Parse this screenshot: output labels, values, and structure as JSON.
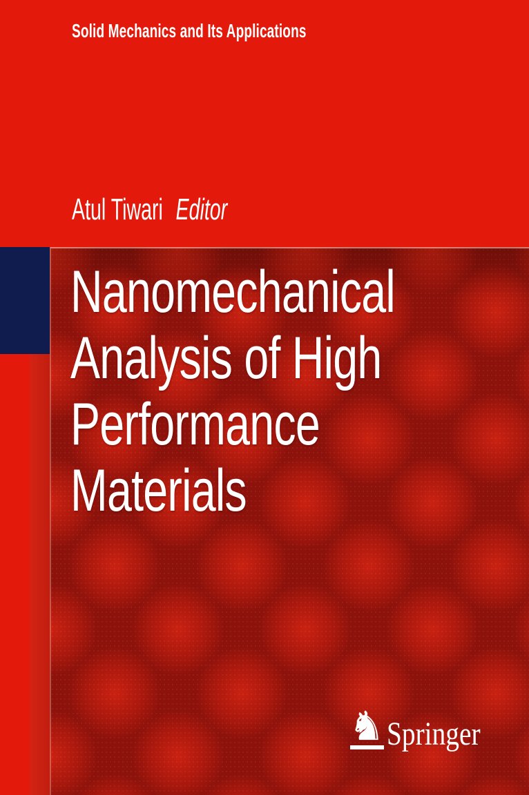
{
  "cover": {
    "series": "Solid Mechanics and Its Applications",
    "editor_name": "Atul Tiwari",
    "editor_role": "Editor",
    "title_lines": [
      "Nanomechanical",
      "Analysis of High",
      "Performance",
      "Materials"
    ],
    "publisher": "Springer",
    "publisher_icon": "springer-horse-icon",
    "horse_glyph": "♞",
    "colors": {
      "background_red": "#e2190b",
      "panel_red_base": "#8c120b",
      "panel_red_highlight": "#c61e0f",
      "navy_square": "#101c4e",
      "text": "#ffffff"
    }
  }
}
